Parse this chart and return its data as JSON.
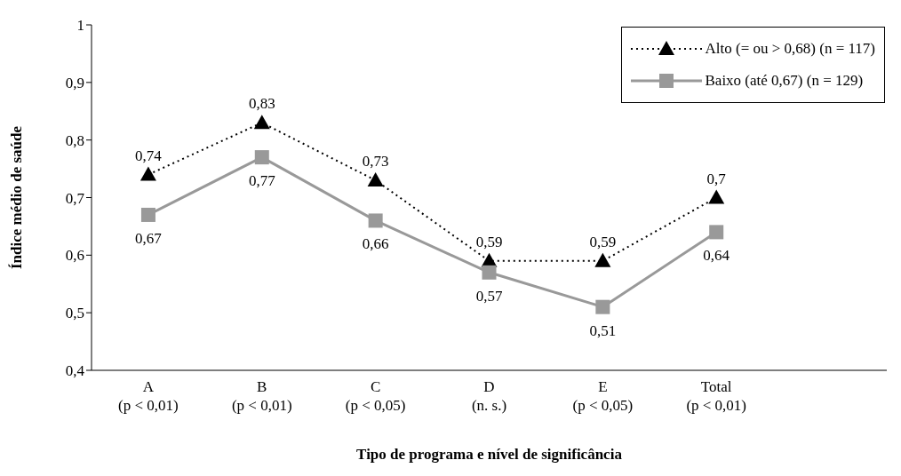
{
  "chart_data": {
    "type": "line",
    "xlabel": "Tipo de programa e nível de significância",
    "ylabel": "Índice médio de saúde",
    "categories": [
      "A (p < 0,01)",
      "B (p < 0,01)",
      "C (p < 0,05)",
      "D (n. s.)",
      "E (p < 0,05)",
      "Total (p < 0,01)",
      null
    ],
    "series": [
      {
        "name": "Alto (= ou > 0,68) (n = 117)",
        "color": "#000000",
        "marker": "triangle",
        "line_style": "dotted",
        "values": [
          0.74,
          0.83,
          0.73,
          0.59,
          0.59,
          0.7,
          null
        ],
        "value_labels": [
          "0,74",
          "0,83",
          "0,73",
          "0,59",
          "0,59",
          "0,7",
          null
        ]
      },
      {
        "name": "Baixo (até 0,67) (n = 129)",
        "color": "#999999",
        "marker": "square",
        "line_style": "solid",
        "values": [
          0.67,
          0.77,
          0.66,
          0.57,
          0.51,
          0.64,
          null
        ],
        "value_labels": [
          "0,67",
          "0,77",
          "0,66",
          "0,57",
          "0,51",
          "0,64",
          null
        ]
      }
    ],
    "ylim": [
      0.4,
      1
    ],
    "yticks": [
      {
        "value": 0.4,
        "label": "0,4"
      },
      {
        "value": 0.5,
        "label": "0,5"
      },
      {
        "value": 0.6,
        "label": "0,6"
      },
      {
        "value": 0.7,
        "label": "0,7"
      },
      {
        "value": 0.8,
        "label": "0,8"
      },
      {
        "value": 0.9,
        "label": "0,9"
      },
      1
    ],
    "grid": false,
    "legend": "top right"
  }
}
